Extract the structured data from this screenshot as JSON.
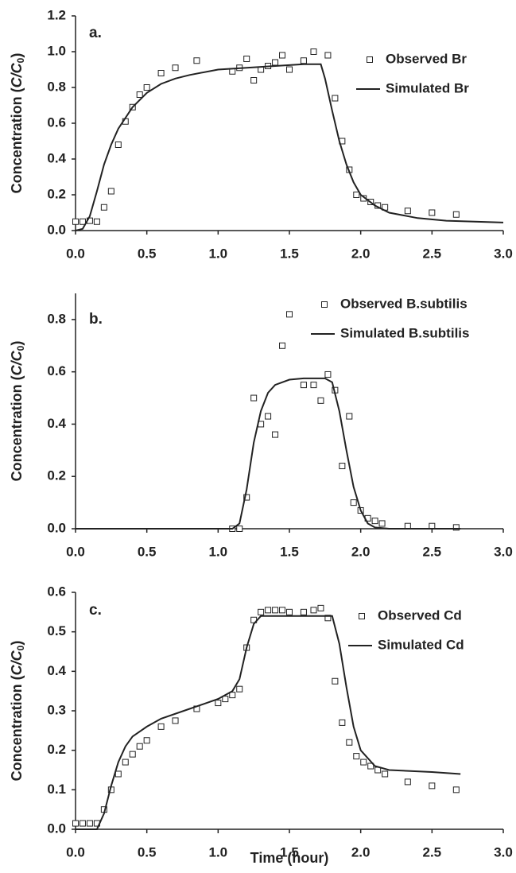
{
  "chart_data": [
    {
      "type": "line",
      "panel_label": "a.",
      "ylabel": "Concentration (C/C0)",
      "xlim": [
        0,
        3
      ],
      "xticks": [
        {
          "value": 0,
          "label": "0.0"
        },
        0.5,
        {
          "value": 1,
          "label": "1.0"
        },
        1.5,
        {
          "value": 2,
          "label": "2.0"
        },
        2.5,
        {
          "value": 3,
          "label": "3.0"
        }
      ],
      "ylim": [
        0,
        1.2
      ],
      "yticks": [
        {
          "value": 0,
          "label": "0.0"
        },
        0.2,
        0.4,
        0.6,
        0.8,
        {
          "value": 1,
          "label": "1.0"
        },
        1.2
      ],
      "series": [
        {
          "name": "Observed Br",
          "style": "markers",
          "color": "#222",
          "x": [
            0,
            0.05,
            0.1,
            0.15,
            0.2,
            0.25,
            0.3,
            0.35,
            0.4,
            0.45,
            0.5,
            0.6,
            0.7,
            0.85,
            1.1,
            1.15,
            1.2,
            1.25,
            1.3,
            1.35,
            1.4,
            1.45,
            1.5,
            1.6,
            1.67,
            1.77,
            1.82,
            1.87,
            1.92,
            1.97,
            2.02,
            2.07,
            2.12,
            2.17,
            2.33,
            2.5,
            2.67
          ],
          "values": [
            0.05,
            0.05,
            0.055,
            0.05,
            0.13,
            0.22,
            0.48,
            0.61,
            0.69,
            0.76,
            0.8,
            0.88,
            0.91,
            0.95,
            0.89,
            0.91,
            0.96,
            0.84,
            0.9,
            0.92,
            0.94,
            0.98,
            0.9,
            0.95,
            1.0,
            0.98,
            0.74,
            0.5,
            0.34,
            0.2,
            0.18,
            0.16,
            0.14,
            0.13,
            0.11,
            0.1,
            0.09
          ]
        },
        {
          "name": "Simulated Br",
          "style": "line",
          "color": "#222",
          "x": [
            0,
            0.05,
            0.1,
            0.15,
            0.2,
            0.25,
            0.3,
            0.4,
            0.5,
            0.6,
            0.7,
            0.8,
            1.0,
            1.2,
            1.4,
            1.6,
            1.72,
            1.75,
            1.8,
            1.85,
            1.9,
            1.95,
            2.0,
            2.1,
            2.2,
            2.4,
            2.6,
            2.8,
            3.0
          ],
          "values": [
            0,
            0.01,
            0.08,
            0.22,
            0.37,
            0.48,
            0.57,
            0.69,
            0.77,
            0.82,
            0.85,
            0.87,
            0.9,
            0.91,
            0.92,
            0.93,
            0.93,
            0.85,
            0.67,
            0.5,
            0.37,
            0.27,
            0.2,
            0.14,
            0.1,
            0.07,
            0.055,
            0.05,
            0.045
          ]
        }
      ]
    },
    {
      "type": "line",
      "panel_label": "b.",
      "ylabel": "Concentration (C/C0)",
      "xlim": [
        0,
        3
      ],
      "xticks": [
        {
          "value": 0,
          "label": "0.0"
        },
        0.5,
        {
          "value": 1,
          "label": "1.0"
        },
        1.5,
        {
          "value": 2,
          "label": "2.0"
        },
        2.5,
        {
          "value": 3,
          "label": "3.0"
        }
      ],
      "ylim": [
        0,
        0.9
      ],
      "yticks": [
        {
          "value": 0,
          "label": "0.0"
        },
        0.2,
        0.4,
        0.6,
        0.8
      ],
      "series": [
        {
          "name": "Observed B.subtilis",
          "style": "markers",
          "color": "#222",
          "x": [
            1.1,
            1.15,
            1.2,
            1.25,
            1.3,
            1.35,
            1.4,
            1.45,
            1.5,
            1.6,
            1.67,
            1.72,
            1.77,
            1.82,
            1.87,
            1.92,
            1.95,
            2.0,
            2.05,
            2.1,
            2.15,
            2.33,
            2.5,
            2.67
          ],
          "values": [
            0,
            0,
            0.12,
            0.5,
            0.4,
            0.43,
            0.36,
            0.7,
            0.82,
            0.55,
            0.55,
            0.49,
            0.59,
            0.53,
            0.24,
            0.43,
            0.1,
            0.07,
            0.04,
            0.03,
            0.02,
            0.01,
            0.01,
            0.005
          ]
        },
        {
          "name": "Simulated B.subtilis",
          "style": "line",
          "color": "#222",
          "x": [
            0,
            1.1,
            1.15,
            1.2,
            1.25,
            1.3,
            1.35,
            1.4,
            1.5,
            1.6,
            1.75,
            1.8,
            1.85,
            1.9,
            1.95,
            2.0,
            2.05,
            2.1,
            2.2,
            2.7
          ],
          "values": [
            0,
            0,
            0.02,
            0.15,
            0.33,
            0.45,
            0.52,
            0.55,
            0.57,
            0.575,
            0.575,
            0.56,
            0.45,
            0.3,
            0.16,
            0.07,
            0.02,
            0.005,
            0,
            0
          ]
        }
      ]
    },
    {
      "type": "line",
      "panel_label": "c.",
      "ylabel": "Concentration (C/C0)",
      "xlabel": "Time (hour)",
      "xlim": [
        0,
        3
      ],
      "xticks": [
        {
          "value": 0,
          "label": "0.0"
        },
        0.5,
        {
          "value": 1,
          "label": "1.0"
        },
        1.5,
        {
          "value": 2,
          "label": "2.0"
        },
        2.5,
        {
          "value": 3,
          "label": "3.0"
        }
      ],
      "ylim": [
        0,
        0.6
      ],
      "yticks": [
        {
          "value": 0,
          "label": "0.0"
        },
        0.1,
        0.2,
        0.3,
        0.4,
        0.5,
        0.6
      ],
      "series": [
        {
          "name": "Observed Cd",
          "style": "markers",
          "color": "#222",
          "x": [
            0,
            0.05,
            0.1,
            0.15,
            0.2,
            0.25,
            0.3,
            0.35,
            0.4,
            0.45,
            0.5,
            0.6,
            0.7,
            0.85,
            1.0,
            1.05,
            1.1,
            1.15,
            1.2,
            1.25,
            1.3,
            1.35,
            1.4,
            1.45,
            1.5,
            1.6,
            1.67,
            1.72,
            1.77,
            1.82,
            1.87,
            1.92,
            1.97,
            2.02,
            2.07,
            2.12,
            2.17,
            2.33,
            2.5,
            2.67
          ],
          "values": [
            0.015,
            0.015,
            0.015,
            0.015,
            0.05,
            0.1,
            0.14,
            0.17,
            0.19,
            0.21,
            0.225,
            0.26,
            0.275,
            0.305,
            0.32,
            0.33,
            0.34,
            0.355,
            0.46,
            0.53,
            0.55,
            0.555,
            0.555,
            0.555,
            0.55,
            0.55,
            0.555,
            0.56,
            0.535,
            0.375,
            0.27,
            0.22,
            0.185,
            0.17,
            0.16,
            0.15,
            0.14,
            0.12,
            0.11,
            0.1
          ]
        },
        {
          "name": "Simulated Cd",
          "style": "line",
          "color": "#222",
          "x": [
            0,
            0.15,
            0.2,
            0.25,
            0.3,
            0.35,
            0.4,
            0.5,
            0.6,
            0.8,
            1.0,
            1.1,
            1.15,
            1.2,
            1.25,
            1.3,
            1.5,
            1.8,
            1.85,
            1.9,
            1.95,
            2.0,
            2.1,
            2.2,
            2.5,
            2.7
          ],
          "values": [
            0,
            0,
            0.04,
            0.11,
            0.17,
            0.21,
            0.235,
            0.26,
            0.28,
            0.305,
            0.33,
            0.35,
            0.38,
            0.46,
            0.52,
            0.54,
            0.54,
            0.54,
            0.47,
            0.36,
            0.26,
            0.2,
            0.16,
            0.15,
            0.145,
            0.14
          ]
        }
      ]
    }
  ]
}
